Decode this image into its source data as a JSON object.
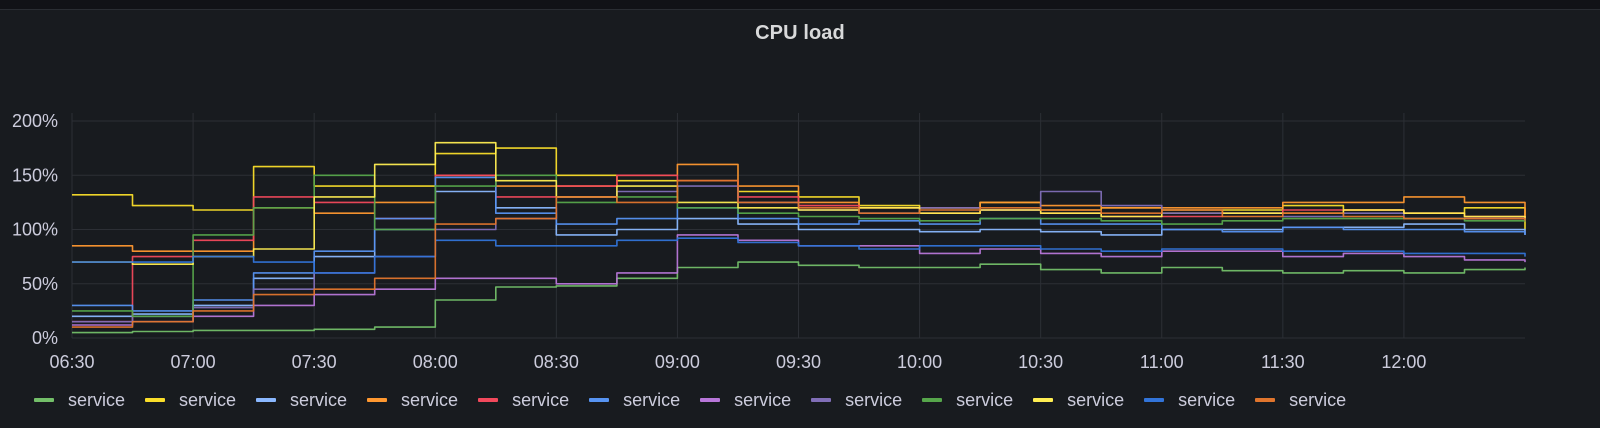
{
  "panel": {
    "title": "CPU load"
  },
  "chart_data": {
    "type": "line",
    "title": "CPU load",
    "xlabel": "",
    "ylabel": "",
    "x_ticks": [
      "06:30",
      "07:00",
      "07:30",
      "08:00",
      "08:30",
      "09:00",
      "09:30",
      "10:00",
      "10:30",
      "11:00",
      "11:30",
      "12:00"
    ],
    "y_ticks": [
      "0%",
      "50%",
      "100%",
      "150%",
      "200%"
    ],
    "ylim": [
      0,
      200
    ],
    "xlim": [
      "06:30",
      "12:30"
    ],
    "grid": true,
    "legend_placement": "bottom-left",
    "x": [
      "06:30",
      "06:45",
      "07:00",
      "07:15",
      "07:30",
      "07:45",
      "08:00",
      "08:15",
      "08:30",
      "08:45",
      "09:00",
      "09:15",
      "09:30",
      "09:45",
      "10:00",
      "10:15",
      "10:30",
      "10:45",
      "11:00",
      "11:15",
      "11:30",
      "11:45",
      "12:00",
      "12:15",
      "12:30"
    ],
    "series": [
      {
        "name": "service",
        "color": "#73bf69",
        "values": [
          5,
          6,
          7,
          7,
          8,
          10,
          35,
          47,
          48,
          55,
          65,
          70,
          67,
          65,
          65,
          68,
          63,
          60,
          65,
          62,
          60,
          62,
          60,
          63,
          65
        ]
      },
      {
        "name": "service",
        "color": "#fade2a",
        "values": [
          132,
          122,
          118,
          158,
          140,
          140,
          170,
          175,
          150,
          145,
          145,
          135,
          130,
          122,
          120,
          125,
          118,
          120,
          115,
          118,
          122,
          118,
          115,
          120,
          100
        ]
      },
      {
        "name": "service",
        "color": "#8ab8ff",
        "values": [
          20,
          22,
          30,
          55,
          75,
          100,
          135,
          120,
          95,
          100,
          110,
          105,
          100,
          100,
          98,
          100,
          98,
          95,
          100,
          100,
          102,
          102,
          105,
          100,
          95
        ]
      },
      {
        "name": "service",
        "color": "#ff9830",
        "values": [
          85,
          80,
          80,
          120,
          115,
          125,
          150,
          140,
          140,
          150,
          160,
          140,
          125,
          120,
          120,
          125,
          122,
          120,
          120,
          120,
          125,
          125,
          130,
          125,
          112
        ]
      },
      {
        "name": "service",
        "color": "#f2495c",
        "values": [
          15,
          75,
          90,
          130,
          125,
          110,
          150,
          130,
          140,
          150,
          145,
          130,
          122,
          120,
          115,
          118,
          115,
          112,
          112,
          115,
          118,
          118,
          115,
          112,
          110
        ]
      },
      {
        "name": "service",
        "color": "#5794f2",
        "values": [
          30,
          25,
          35,
          60,
          80,
          110,
          148,
          115,
          105,
          110,
          120,
          110,
          105,
          108,
          105,
          110,
          105,
          105,
          100,
          98,
          102,
          100,
          100,
          98,
          95
        ]
      },
      {
        "name": "service",
        "color": "#b877d9",
        "values": [
          12,
          15,
          20,
          30,
          40,
          45,
          55,
          55,
          50,
          60,
          95,
          90,
          85,
          85,
          78,
          82,
          78,
          75,
          80,
          80,
          75,
          78,
          75,
          72,
          70
        ]
      },
      {
        "name": "service",
        "color": "#806eb7",
        "values": [
          15,
          20,
          28,
          45,
          60,
          75,
          100,
          110,
          130,
          135,
          140,
          125,
          118,
          115,
          120,
          118,
          135,
          122,
          115,
          115,
          112,
          115,
          110,
          110,
          108
        ]
      },
      {
        "name": "service",
        "color": "#56a64b",
        "values": [
          25,
          20,
          95,
          120,
          150,
          100,
          140,
          150,
          125,
          130,
          120,
          115,
          112,
          110,
          108,
          110,
          110,
          108,
          105,
          108,
          110,
          110,
          110,
          108,
          110
        ]
      },
      {
        "name": "service",
        "color": "#ffee52",
        "values": [
          70,
          68,
          75,
          82,
          130,
          160,
          180,
          145,
          130,
          140,
          125,
          120,
          118,
          120,
          115,
          118,
          115,
          112,
          118,
          115,
          115,
          118,
          115,
          112,
          110
        ]
      },
      {
        "name": "service",
        "color": "#3274d9",
        "values": [
          70,
          70,
          75,
          70,
          60,
          75,
          90,
          85,
          85,
          90,
          92,
          88,
          85,
          82,
          85,
          85,
          82,
          80,
          82,
          82,
          80,
          80,
          78,
          78,
          75
        ]
      },
      {
        "name": "service",
        "color": "#e0752d",
        "values": [
          10,
          15,
          25,
          40,
          45,
          55,
          105,
          110,
          130,
          125,
          145,
          125,
          120,
          115,
          118,
          120,
          118,
          115,
          118,
          112,
          115,
          112,
          110,
          110,
          108
        ]
      }
    ]
  }
}
